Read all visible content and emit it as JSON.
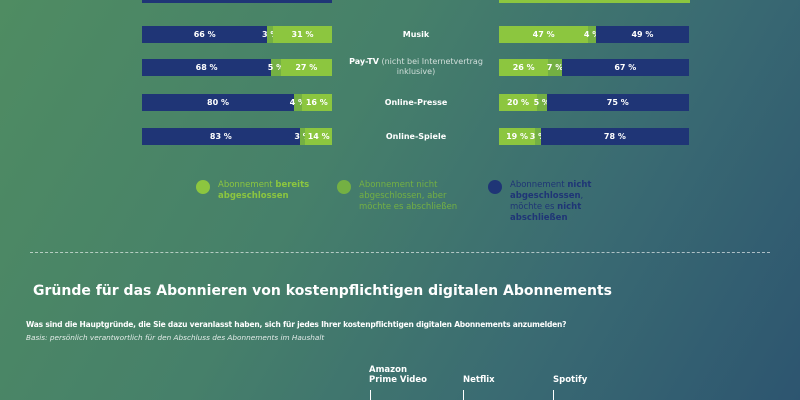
{
  "chart_data": {
    "type": "bar",
    "orientation": "horizontal-stacked",
    "unit": "%",
    "categories": [
      {
        "label": "Musik",
        "note": ""
      },
      {
        "label": "Pay-TV",
        "note": "(nicht bei Internetvertrag inklusive)"
      },
      {
        "label": "Online-Presse",
        "note": ""
      },
      {
        "label": "Online-Spiele",
        "note": ""
      }
    ],
    "left_panel": {
      "series_order": [
        "not_wanted",
        "would_like",
        "subscribed"
      ],
      "values": [
        {
          "not_wanted": 66,
          "would_like": 3,
          "subscribed": 31
        },
        {
          "not_wanted": 68,
          "would_like": 5,
          "subscribed": 27
        },
        {
          "not_wanted": 80,
          "would_like": 4,
          "subscribed": 16
        },
        {
          "not_wanted": 83,
          "would_like": 3,
          "subscribed": 14
        }
      ]
    },
    "right_panel": {
      "series_order": [
        "subscribed",
        "would_like",
        "not_wanted"
      ],
      "values": [
        {
          "subscribed": 47,
          "would_like": 4,
          "not_wanted": 49
        },
        {
          "subscribed": 26,
          "would_like": 7,
          "not_wanted": 67
        },
        {
          "subscribed": 20,
          "would_like": 5,
          "not_wanted": 75
        },
        {
          "subscribed": 19,
          "would_like": 3,
          "not_wanted": 78
        }
      ]
    },
    "colors": {
      "subscribed": "#8cc63f",
      "would_like": "#74b043",
      "not_wanted": "#1f3576"
    },
    "legend": [
      {
        "key": "subscribed",
        "text_a": "Abonnement ",
        "text_b": "bereits abgeschlossen"
      },
      {
        "key": "would_like",
        "text_a": "Abonnement nicht abgeschlossen, aber möchte es abschließen",
        "text_b": ""
      },
      {
        "key": "not_wanted",
        "text_a": "Abonnement ",
        "text_b": "nicht abgeschlossen",
        "text_c": ", möchte es ",
        "text_d": "nicht abschließen"
      }
    ],
    "legend_placement": "bottom"
  },
  "section2": {
    "title": "Gründe für das Abonnieren von kostenpflichtigen digitalen Abonnements",
    "question": "Was sind die Hauptgründe, die Sie dazu veranlasst haben, sich für jedes Ihrer kostenpflichtigen digitalen Abonnements anzumelden?",
    "basis": "Basis: persönlich verantwortlich für den Abschluss des Abonnements im Haushalt",
    "columns": [
      "Amazon Prime Video",
      "Netflix",
      "Spotify"
    ]
  }
}
